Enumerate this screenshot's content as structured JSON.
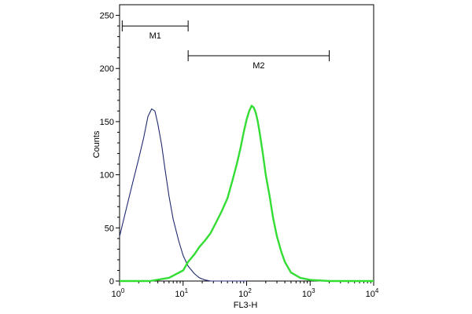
{
  "chart_data": {
    "type": "line",
    "xlabel": "FL3-H",
    "ylabel": "Counts",
    "x_scale": "log",
    "xlim": [
      1,
      10000
    ],
    "ylim": [
      0,
      260
    ],
    "x_ticks": [
      {
        "value": 1,
        "base": "10",
        "exp": "0"
      },
      {
        "value": 10,
        "base": "10",
        "exp": "1"
      },
      {
        "value": 100,
        "base": "10",
        "exp": "2"
      },
      {
        "value": 1000,
        "base": "10",
        "exp": "3"
      },
      {
        "value": 10000,
        "base": "10",
        "exp": "4"
      }
    ],
    "y_ticks": [
      "0",
      "50",
      "100",
      "150",
      "200",
      "250"
    ],
    "grid": false,
    "gates": [
      {
        "label": "M1",
        "x_start": 1.1,
        "x_end": 12,
        "y_level": 240
      },
      {
        "label": "M2",
        "x_start": 12,
        "x_end": 2000,
        "y_level": 212
      }
    ],
    "series": [
      {
        "color": "#1f2a6e",
        "x": [
          1,
          1.3,
          1.6,
          2.0,
          2.4,
          2.8,
          3.2,
          3.6,
          4.0,
          4.6,
          5.2,
          6.0,
          7.0,
          8.5,
          10,
          12,
          15,
          18,
          22,
          27,
          35,
          50,
          100
        ],
        "y": [
          42,
          70,
          92,
          115,
          135,
          155,
          162,
          160,
          148,
          128,
          105,
          80,
          58,
          38,
          24,
          14,
          7,
          3,
          1,
          0,
          0,
          0,
          0
        ]
      },
      {
        "color": "#33dd33",
        "x": [
          1,
          3,
          6,
          10,
          12,
          15,
          18,
          22,
          27,
          33,
          40,
          50,
          60,
          70,
          80,
          90,
          100,
          110,
          120,
          130,
          140,
          150,
          160,
          180,
          200,
          230,
          260,
          300,
          350,
          400,
          500,
          700,
          1000,
          2000,
          10000
        ],
        "y": [
          0,
          0,
          3,
          10,
          18,
          25,
          32,
          38,
          45,
          55,
          65,
          78,
          95,
          110,
          125,
          140,
          152,
          160,
          165,
          163,
          158,
          150,
          140,
          120,
          100,
          80,
          60,
          42,
          28,
          18,
          8,
          3,
          1,
          0,
          0
        ]
      }
    ]
  }
}
